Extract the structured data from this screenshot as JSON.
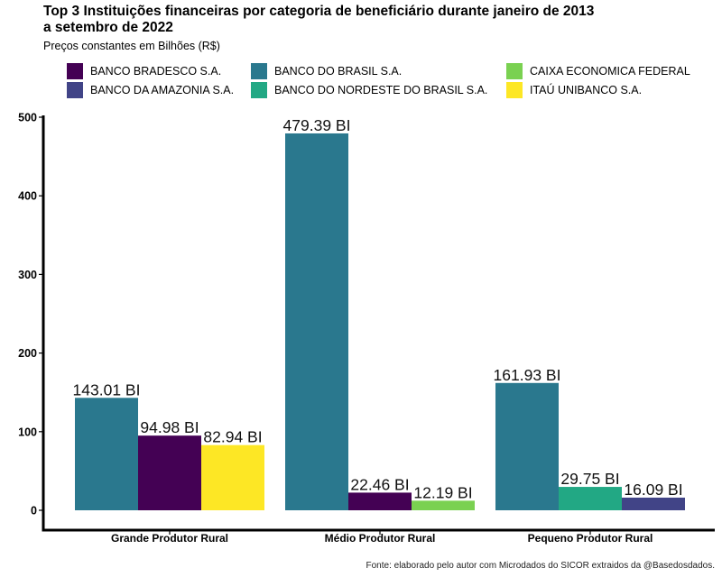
{
  "chart_data": {
    "type": "bar",
    "title": "Top 3 Instituições financeiras por categoria de beneficiário durante janeiro de 2013\n a setembro de 2022",
    "subtitle": "Preços constantes em Bilhões (R$)",
    "caption": "Fonte: elaborado pelo autor com Microdados do SICOR extraidos da @Basedosdados.",
    "ylim": [
      0,
      500
    ],
    "yticks": [
      "0",
      "100",
      "200",
      "300",
      "400",
      "500"
    ],
    "ytick_values": [
      0,
      100,
      200,
      300,
      400,
      500
    ],
    "legend_position": "top",
    "grid": false,
    "legend": [
      {
        "name": "BANCO BRADESCO S.A.",
        "color": "#440154"
      },
      {
        "name": "BANCO DA AMAZONIA S.A.",
        "color": "#414487"
      },
      {
        "name": "BANCO DO BRASIL S.A.",
        "color": "#2A788E"
      },
      {
        "name": "BANCO DO NORDESTE DO BRASIL S.A.",
        "color": "#22A884"
      },
      {
        "name": "CAIXA ECONOMICA FEDERAL",
        "color": "#7AD151"
      },
      {
        "name": "ITAÚ UNIBANCO S.A.",
        "color": "#FDE725"
      }
    ],
    "groups": [
      {
        "category": "Grande Produtor Rural",
        "bars": [
          {
            "series": "BANCO DO BRASIL S.A.",
            "value": 143.01,
            "label": "143.01 BI"
          },
          {
            "series": "BANCO BRADESCO S.A.",
            "value": 94.98,
            "label": "94.98 BI"
          },
          {
            "series": "ITAÚ UNIBANCO S.A.",
            "value": 82.94,
            "label": "82.94 BI"
          }
        ]
      },
      {
        "category": "Médio Produtor Rural",
        "bars": [
          {
            "series": "BANCO DO BRASIL S.A.",
            "value": 479.39,
            "label": "479.39 BI"
          },
          {
            "series": "BANCO BRADESCO S.A.",
            "value": 22.46,
            "label": "22.46 BI"
          },
          {
            "series": "CAIXA ECONOMICA FEDERAL",
            "value": 12.19,
            "label": "12.19 BI"
          }
        ]
      },
      {
        "category": "Pequeno Produtor Rural",
        "bars": [
          {
            "series": "BANCO DO BRASIL S.A.",
            "value": 161.93,
            "label": "161.93 BI"
          },
          {
            "series": "BANCO DO NORDESTE DO BRASIL S.A.",
            "value": 29.75,
            "label": "29.75 BI"
          },
          {
            "series": "BANCO DA AMAZONIA S.A.",
            "value": 16.09,
            "label": "16.09 BI"
          }
        ]
      }
    ]
  }
}
